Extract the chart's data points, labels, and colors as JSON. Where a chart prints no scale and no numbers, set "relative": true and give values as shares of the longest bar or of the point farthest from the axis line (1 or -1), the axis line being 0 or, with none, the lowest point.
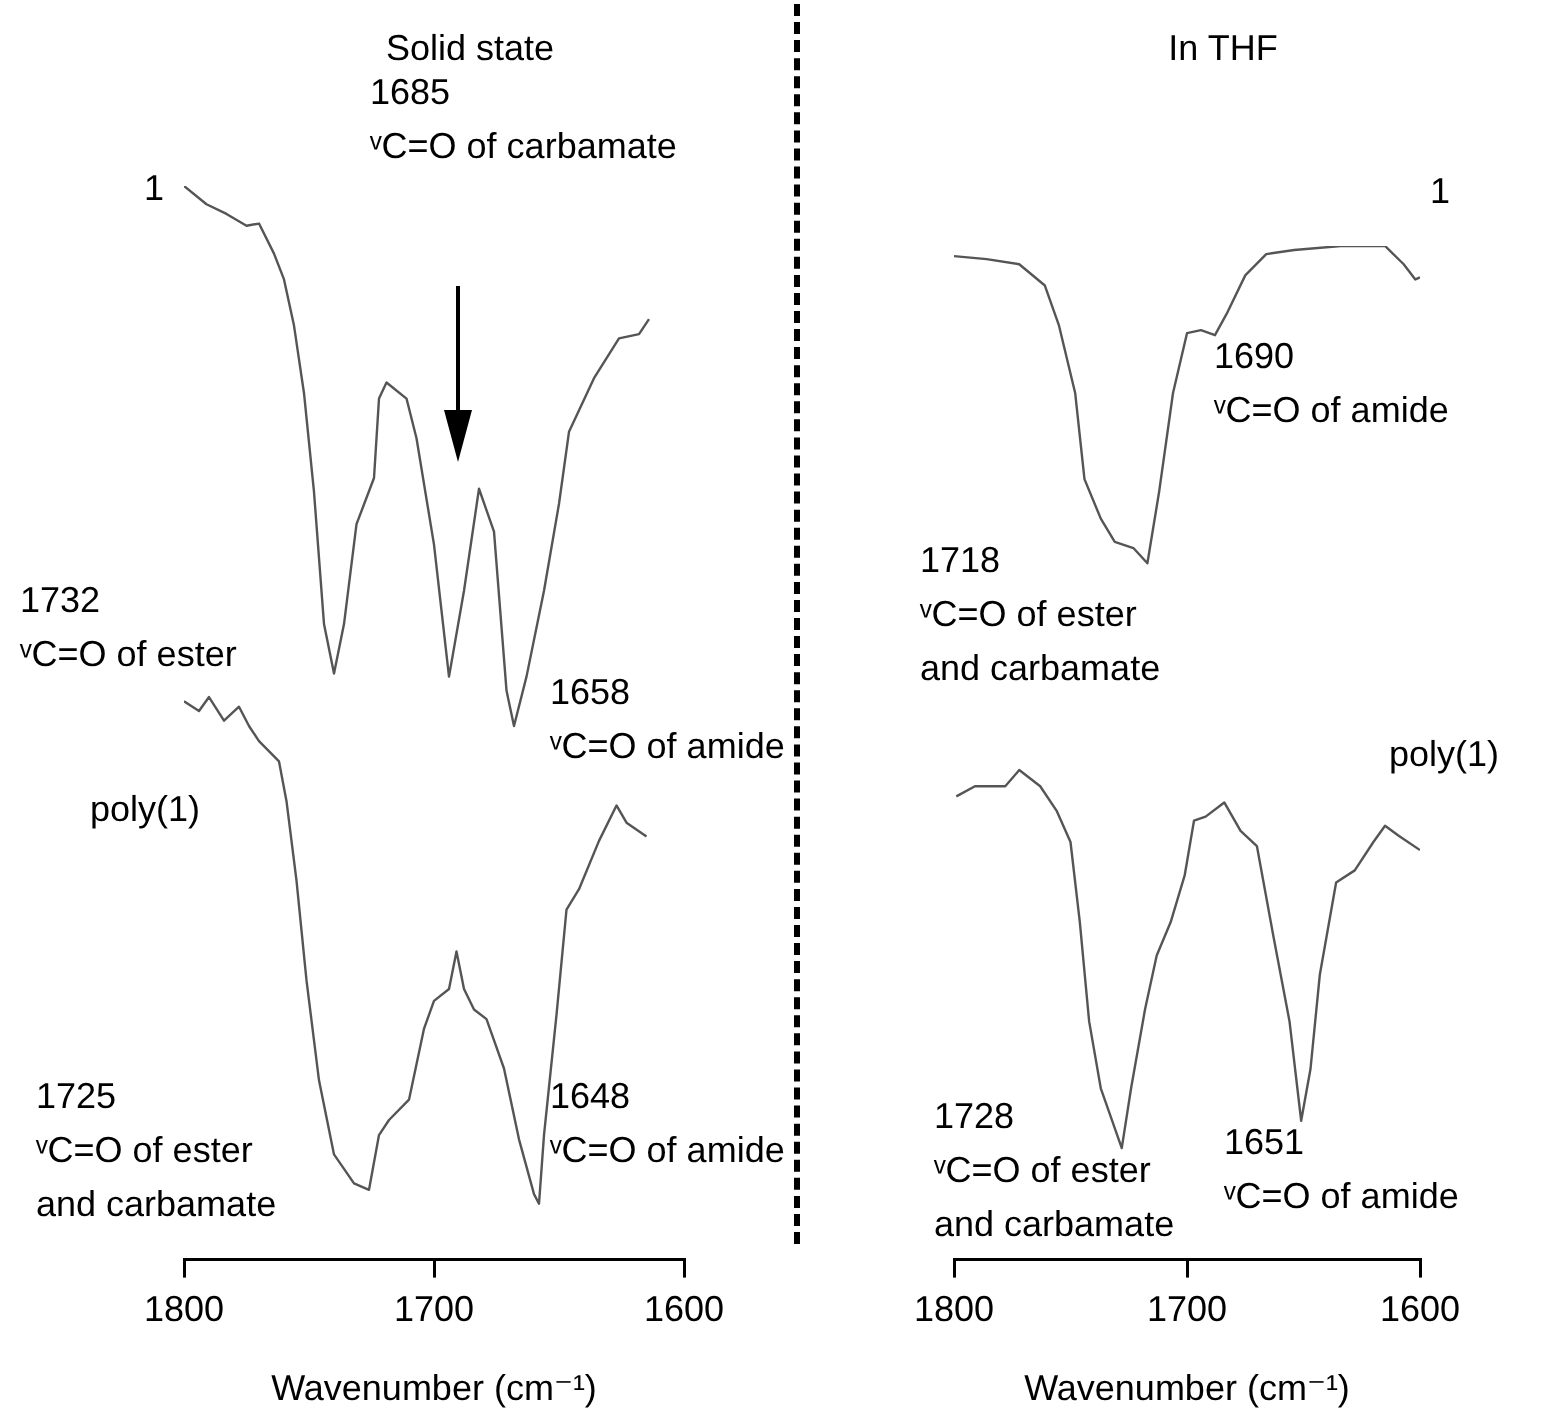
{
  "chart_data": [
    {
      "type": "line",
      "title": "Solid state",
      "xlabel": "Wavenumber (cm⁻¹)",
      "relative": true,
      "xlim": [
        1800,
        1600
      ],
      "xticks": [
        1800,
        1700,
        1600
      ],
      "series": [
        {
          "name": "1",
          "color": "#555555",
          "x": [
            1800,
            1791,
            1783,
            1775,
            1770,
            1764,
            1760,
            1756,
            1752,
            1748,
            1744,
            1740,
            1736,
            1731,
            1724,
            1722,
            1719,
            1711,
            1707,
            1700,
            1694,
            1688,
            1682,
            1676,
            1671,
            1668,
            1663,
            1656,
            1650,
            1646,
            1636,
            1626,
            1618,
            1614
          ],
          "values": [
            1,
            0.983,
            0.974,
            0.963,
            0.965,
            0.937,
            0.913,
            0.87,
            0.807,
            0.715,
            0.592,
            0.546,
            0.592,
            0.685,
            0.728,
            0.802,
            0.817,
            0.802,
            0.765,
            0.666,
            0.543,
            0.623,
            0.718,
            0.678,
            0.53,
            0.497,
            0.543,
            0.623,
            0.704,
            0.771,
            0.821,
            0.858,
            0.862,
            0.876
          ]
        },
        {
          "name": "poly(1)",
          "color": "#555555",
          "x": [
            1800,
            1794,
            1790,
            1784,
            1778,
            1774,
            1770,
            1762,
            1759,
            1755,
            1751,
            1746,
            1740,
            1732,
            1726,
            1722,
            1718,
            1710,
            1704,
            1700,
            1694,
            1691,
            1688,
            1684,
            1679,
            1672,
            1666,
            1660,
            1658,
            1656,
            1651,
            1647,
            1642,
            1634,
            1627,
            1623,
            1615
          ],
          "values": [
            0.52,
            0.511,
            0.524,
            0.502,
            0.515,
            0.497,
            0.483,
            0.464,
            0.427,
            0.353,
            0.26,
            0.167,
            0.098,
            0.071,
            0.065,
            0.116,
            0.13,
            0.149,
            0.215,
            0.241,
            0.252,
            0.287,
            0.252,
            0.233,
            0.224,
            0.178,
            0.112,
            0.061,
            0.052,
            0.116,
            0.228,
            0.326,
            0.345,
            0.39,
            0.423,
            0.407,
            0.394
          ]
        }
      ],
      "annotations": [
        "1732\nᵛC=O of ester",
        "1685\nᵛC=O of carbamate",
        "1658\nᵛC=O of amide",
        "1725\nᵛC=O of ester\nand carbamate",
        "1648\nᵛC=O of amide"
      ]
    },
    {
      "type": "line",
      "title": "In THF",
      "xlabel": "Wavenumber (cm⁻¹)",
      "relative": true,
      "xlim": [
        1800,
        1600
      ],
      "xticks": [
        1800,
        1700,
        1600
      ],
      "series": [
        {
          "name": "1",
          "color": "#555555",
          "x": [
            1800,
            1786,
            1772,
            1761,
            1755,
            1748,
            1744,
            1737,
            1731,
            1723,
            1717,
            1712,
            1706,
            1700,
            1694,
            1688,
            1683,
            1675,
            1666,
            1654,
            1634,
            1615,
            1607,
            1602,
            1600
          ],
          "values": [
            0.99,
            0.987,
            0.982,
            0.961,
            0.922,
            0.855,
            0.77,
            0.731,
            0.708,
            0.702,
            0.687,
            0.757,
            0.855,
            0.914,
            0.917,
            0.912,
            0.933,
            0.971,
            0.992,
            0.996,
            1,
            1,
            0.982,
            0.967,
            0.969
          ]
        },
        {
          "name": "poly(1)",
          "color": "#555555",
          "x": [
            1799,
            1791,
            1778,
            1772,
            1763,
            1756,
            1750,
            1746,
            1742,
            1737,
            1728,
            1724,
            1718,
            1713,
            1707,
            1701,
            1697,
            1692,
            1684,
            1677,
            1670,
            1663,
            1656,
            1651,
            1647,
            1643,
            1636,
            1628,
            1620,
            1615,
            1609,
            1600
          ],
          "values": [
            0.457,
            0.467,
            0.467,
            0.483,
            0.467,
            0.443,
            0.412,
            0.333,
            0.235,
            0.169,
            0.11,
            0.169,
            0.247,
            0.3,
            0.333,
            0.379,
            0.433,
            0.437,
            0.451,
            0.423,
            0.408,
            0.32,
            0.235,
            0.137,
            0.188,
            0.281,
            0.372,
            0.384,
            0.412,
            0.428,
            0.418,
            0.404
          ]
        }
      ],
      "annotations": [
        "1718\nᵛC=O of ester\nand carbamate",
        "1690\nᵛC=O of amide",
        "1728\nᵛC=O of ester\nand carbamate",
        "1651\nᵛC=O of amide"
      ]
    }
  ]
}
